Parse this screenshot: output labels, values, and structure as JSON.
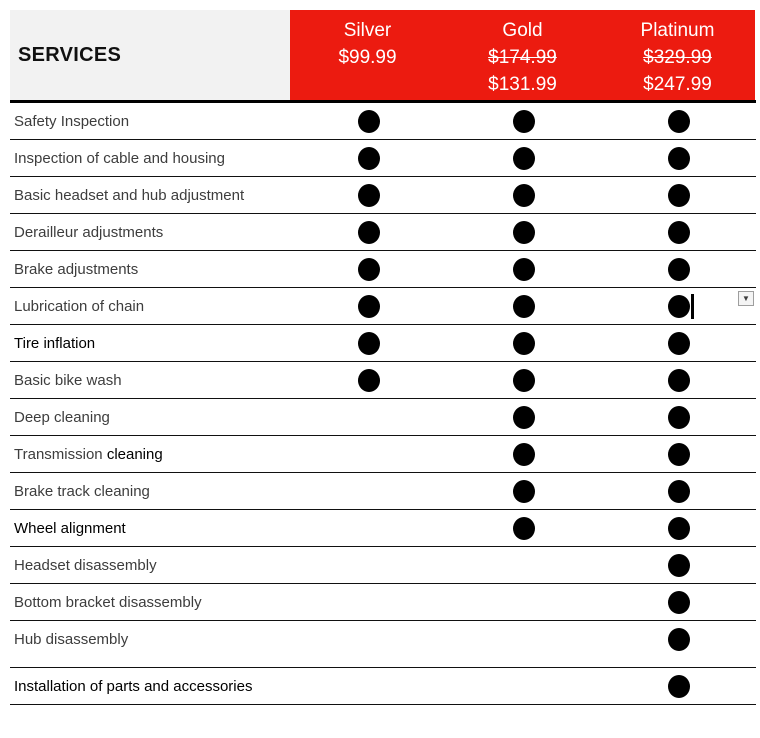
{
  "header": {
    "services_label": "SERVICES",
    "columns": [
      {
        "name": "Silver",
        "price_lines": [
          {
            "text": "$99.99",
            "strikethrough": false
          }
        ]
      },
      {
        "name": "Gold",
        "price_lines": [
          {
            "text": "$174.99",
            "strikethrough": true
          },
          {
            "text": "$131.99",
            "strikethrough": false
          }
        ]
      },
      {
        "name": "Platinum",
        "price_lines": [
          {
            "text": "$329.99",
            "strikethrough": true
          },
          {
            "text": "$247.99",
            "strikethrough": false
          }
        ]
      }
    ],
    "colors": {
      "banner_red": "#ec1b10",
      "services_bg": "#f2f2f2"
    }
  },
  "table": {
    "tiers": [
      "silver",
      "gold",
      "platinum"
    ],
    "rows": [
      {
        "label_parts": [
          {
            "text": "Safety Inspection",
            "black": false
          }
        ],
        "silver": true,
        "gold": true,
        "platinum": true
      },
      {
        "label_parts": [
          {
            "text": "Inspection of cable and housing",
            "black": false
          }
        ],
        "silver": true,
        "gold": true,
        "platinum": true
      },
      {
        "label_parts": [
          {
            "text": "Basic headset and hub adjustment",
            "black": false
          }
        ],
        "silver": true,
        "gold": true,
        "platinum": true
      },
      {
        "label_parts": [
          {
            "text": "Derailleur adjustments",
            "black": false
          }
        ],
        "silver": true,
        "gold": true,
        "platinum": true
      },
      {
        "label_parts": [
          {
            "text": "Brake adjustments",
            "black": false
          }
        ],
        "silver": true,
        "gold": true,
        "platinum": true
      },
      {
        "label_parts": [
          {
            "text": "Lubrication of chain",
            "black": false
          }
        ],
        "silver": true,
        "gold": true,
        "platinum": true,
        "caret_after_platinum": true,
        "dropdown_button": true
      },
      {
        "label_parts": [
          {
            "text": "Tire inflation",
            "black": true
          }
        ],
        "silver": true,
        "gold": true,
        "platinum": true
      },
      {
        "label_parts": [
          {
            "text": "Basic bike wash",
            "black": false
          }
        ],
        "silver": true,
        "gold": true,
        "platinum": true
      },
      {
        "label_parts": [
          {
            "text": "Deep cleaning",
            "black": false
          }
        ],
        "silver": false,
        "gold": true,
        "platinum": true
      },
      {
        "label_parts": [
          {
            "text": "Transmission ",
            "black": false
          },
          {
            "text": "cleaning",
            "black": true
          }
        ],
        "silver": false,
        "gold": true,
        "platinum": true
      },
      {
        "label_parts": [
          {
            "text": "Brake track cleaning",
            "black": false
          }
        ],
        "silver": false,
        "gold": true,
        "platinum": true
      },
      {
        "label_parts": [
          {
            "text": "Wheel alignment",
            "black": true
          }
        ],
        "silver": false,
        "gold": true,
        "platinum": true
      },
      {
        "label_parts": [
          {
            "text": "Headset disassembly",
            "black": false
          }
        ],
        "silver": false,
        "gold": false,
        "platinum": true
      },
      {
        "label_parts": [
          {
            "text": "Bottom bracket disassembly",
            "black": false
          }
        ],
        "silver": false,
        "gold": false,
        "platinum": true
      },
      {
        "label_parts": [
          {
            "text": "Hub disassembly",
            "black": false
          }
        ],
        "silver": false,
        "gold": false,
        "platinum": true,
        "extra_space_below": true
      },
      {
        "label_parts": [
          {
            "text": "Installation of parts and accessories",
            "black": true
          }
        ],
        "silver": false,
        "gold": false,
        "platinum": true
      }
    ]
  },
  "icons": {
    "dropdown": "▼"
  }
}
